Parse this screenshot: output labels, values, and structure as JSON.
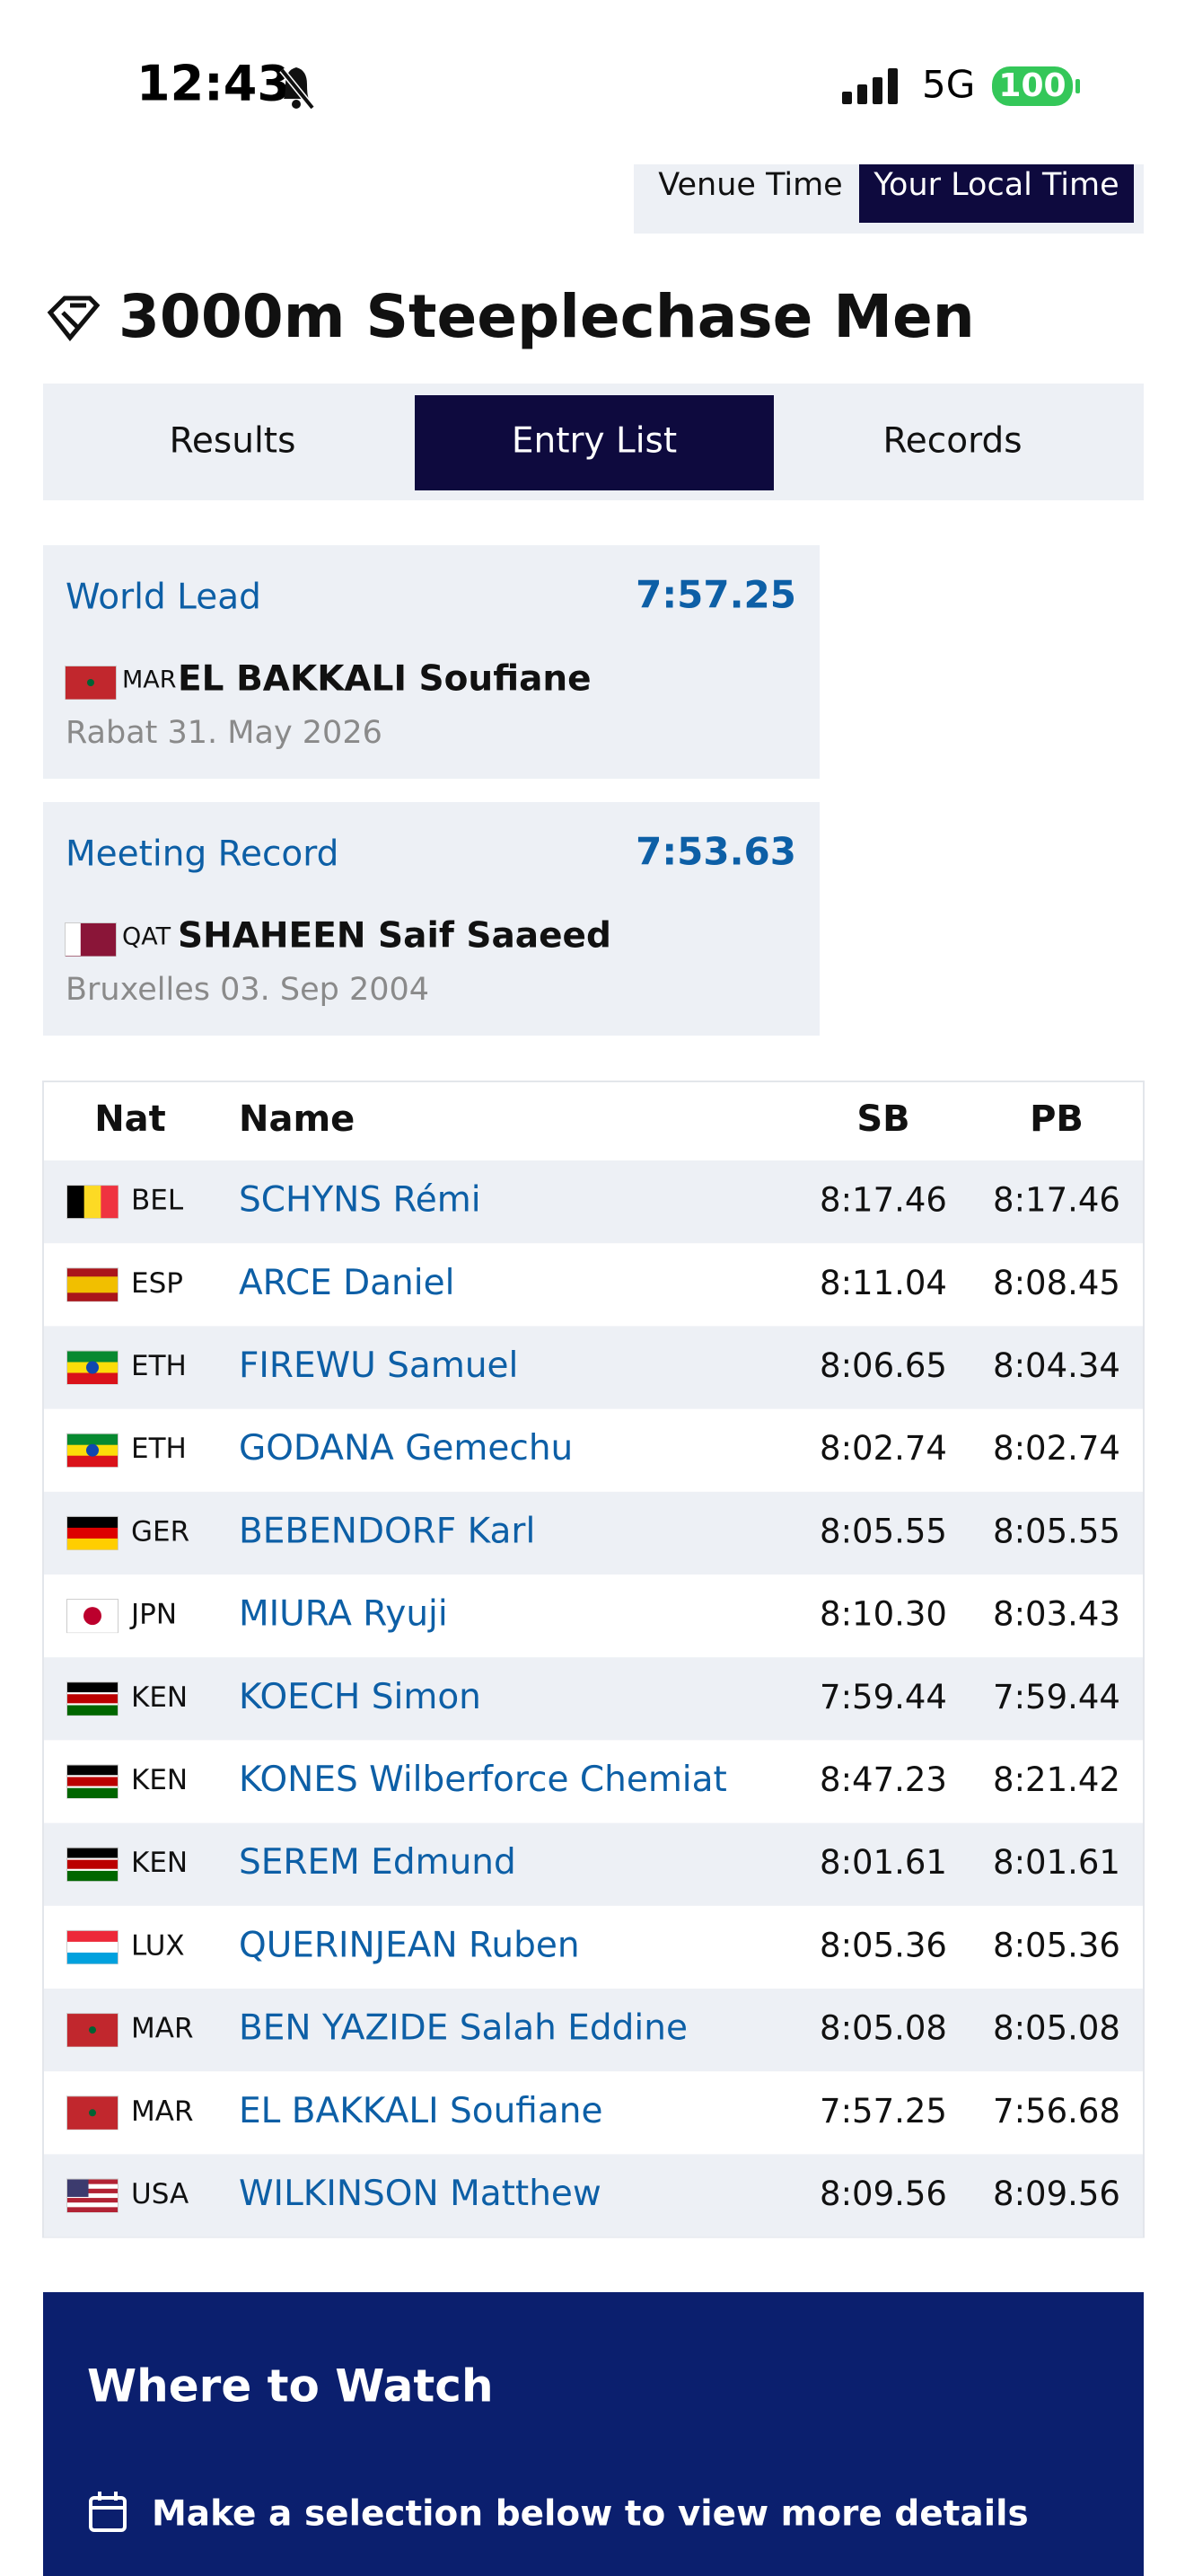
{
  "status_bar": {
    "time": "12:43",
    "network": "5G",
    "battery": "100"
  },
  "time_toggle": {
    "options": [
      "Venue Time",
      "Your Local Time"
    ]
  },
  "title": "3000m Steeplechase Men",
  "tabs": [
    "Results",
    "Entry List",
    "Records"
  ],
  "records": [
    {
      "label": "World Lead",
      "mark": "7:57.25",
      "nat": "MAR",
      "athlete": "EL BAKKALI Soufiane",
      "venue_date": "Rabat 31. May 2026"
    },
    {
      "label": "Meeting Record",
      "mark": "7:53.63",
      "nat": "QAT",
      "athlete": "SHAHEEN Saif Saaeed",
      "venue_date": "Bruxelles 03. Sep 2004"
    }
  ],
  "entry_list": {
    "columns": [
      "Nat",
      "Name",
      "SB",
      "PB"
    ],
    "rows": [
      [
        "BEL",
        "SCHYNS Rémi",
        "8:17.46",
        "8:17.46"
      ],
      [
        "ESP",
        "ARCE Daniel",
        "8:11.04",
        "8:08.45"
      ],
      [
        "ETH",
        "FIREWU Samuel",
        "8:06.65",
        "8:04.34"
      ],
      [
        "ETH",
        "GODANA Gemechu",
        "8:02.74",
        "8:02.74"
      ],
      [
        "GER",
        "BEBENDORF Karl",
        "8:05.55",
        "8:05.55"
      ],
      [
        "JPN",
        "MIURA Ryuji",
        "8:10.30",
        "8:03.43"
      ],
      [
        "KEN",
        "KOECH Simon",
        "7:59.44",
        "7:59.44"
      ],
      [
        "KEN",
        "KONES Wilberforce Chemiat",
        "8:47.23",
        "8:21.42"
      ],
      [
        "KEN",
        "SEREM Edmund",
        "8:01.61",
        "8:01.61"
      ],
      [
        "LUX",
        "QUERINJEAN Ruben",
        "8:05.36",
        "8:05.36"
      ],
      [
        "MAR",
        "BEN YAZIDE Salah Eddine",
        "8:05.08",
        "8:05.08"
      ],
      [
        "MAR",
        "EL BAKKALI Soufiane",
        "7:57.25",
        "7:56.68"
      ],
      [
        "USA",
        "WILKINSON Matthew",
        "8:09.56",
        "8:09.56"
      ]
    ]
  },
  "where_to_watch": {
    "title": "Where to Watch",
    "prompt": "Make a selection below to view more details"
  }
}
